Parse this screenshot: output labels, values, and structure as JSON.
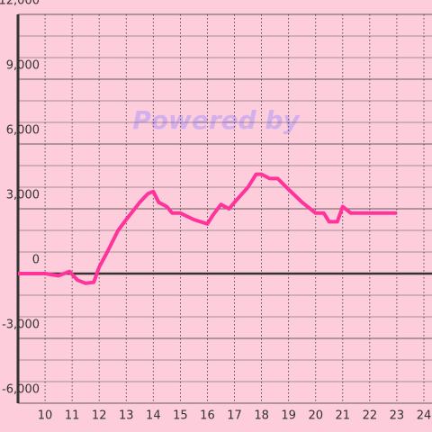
{
  "chart_data": {
    "type": "line",
    "annotation": "Powered by",
    "x": [
      9,
      10,
      10.5,
      10.9,
      11.2,
      11.5,
      11.8,
      12,
      12.3,
      12.7,
      13,
      13.5,
      13.8,
      14,
      14.2,
      14.5,
      14.7,
      15,
      15.5,
      16,
      16.2,
      16.5,
      16.8,
      17,
      17.5,
      17.8,
      18,
      18.3,
      18.6,
      19,
      19.5,
      20,
      20.3,
      20.5,
      20.8,
      21,
      21.3,
      23
    ],
    "series": [
      {
        "color": "#ff3399",
        "values": [
          0,
          0,
          -100,
          100,
          -300,
          -450,
          -400,
          300,
          1000,
          2000,
          2500,
          3300,
          3700,
          3800,
          3300,
          3100,
          2800,
          2800,
          2500,
          2300,
          2700,
          3200,
          3000,
          3300,
          4000,
          4600,
          4600,
          4400,
          4400,
          3900,
          3300,
          2800,
          2800,
          2400,
          2400,
          3100,
          2800,
          2800
        ]
      }
    ],
    "xlim": [
      9,
      24.3
    ],
    "xticks": [
      10,
      11,
      12,
      13,
      14,
      15,
      16,
      17,
      18,
      19,
      20,
      21,
      22,
      23,
      24
    ],
    "ylim": [
      -6000,
      12000
    ],
    "yticks": [
      {
        "value": -6000,
        "label": "-6,000"
      },
      {
        "value": -3000,
        "label": "-3,000"
      },
      0,
      {
        "value": 3000,
        "label": "3,000"
      },
      {
        "value": 6000,
        "label": "6,000"
      },
      {
        "value": 9000,
        "label": "9,000"
      },
      {
        "value": 12000,
        "label": "12,000"
      }
    ],
    "grid": true
  }
}
